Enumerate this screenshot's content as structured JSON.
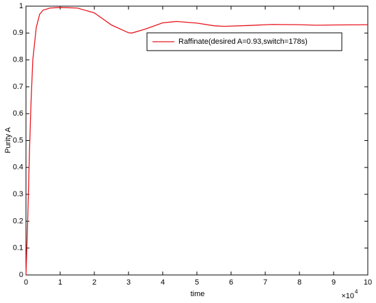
{
  "chart_data": {
    "type": "line",
    "xlabel": "time",
    "ylabel": "Purity A",
    "x_scale_label": "×10",
    "x_scale_exponent": "4",
    "x": [
      0,
      0.05,
      0.1,
      0.15,
      0.2,
      0.3,
      0.4,
      0.5,
      0.7,
      1,
      1.5,
      2,
      2.5,
      3,
      3.1,
      3.5,
      4,
      4.4,
      5,
      5.5,
      5.8,
      6.5,
      7.2,
      8,
      8.5,
      9,
      10
    ],
    "series": [
      {
        "name": "Raffinate(desired A=0.93,switch=178s)",
        "color": "#e8141c",
        "values": [
          0,
          0.2,
          0.45,
          0.65,
          0.8,
          0.92,
          0.97,
          0.985,
          0.993,
          0.995,
          0.993,
          0.975,
          0.93,
          0.901,
          0.9,
          0.915,
          0.938,
          0.943,
          0.937,
          0.927,
          0.925,
          0.928,
          0.932,
          0.931,
          0.929,
          0.93,
          0.931
        ]
      }
    ],
    "xlim": [
      0,
      10
    ],
    "xticks": [
      0,
      1,
      2,
      3,
      4,
      5,
      6,
      7,
      8,
      9,
      10
    ],
    "ylim": [
      0,
      1
    ],
    "yticks": [
      0,
      0.1,
      0.2,
      0.3,
      0.4,
      0.5,
      0.6,
      0.7,
      0.8,
      0.9,
      1
    ],
    "grid": false,
    "legend": "north-east"
  }
}
